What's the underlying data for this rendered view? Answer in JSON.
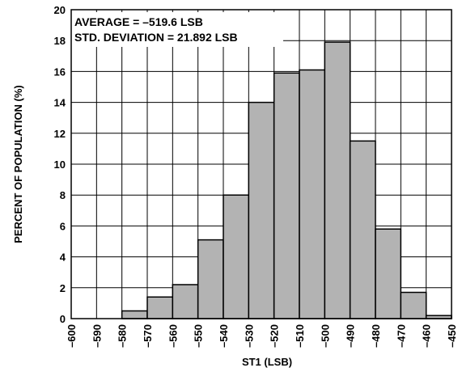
{
  "chart_data": {
    "type": "bar",
    "title": "",
    "xlabel": "ST1 (LSB)",
    "ylabel": "PERCENT OF POPULATION (%)",
    "annotations": [
      "AVERAGE = –519.6 LSB",
      "STD. DEVIATION = 21.892 LSB"
    ],
    "x_ticks": [
      "–600",
      "–590",
      "–580",
      "–570",
      "–560",
      "–550",
      "–540",
      "–530",
      "–520",
      "–510",
      "–500",
      "–490",
      "–480",
      "–470",
      "–460",
      "–450"
    ],
    "y_ticks": [
      "0",
      "2",
      "4",
      "6",
      "8",
      "10",
      "12",
      "14",
      "16",
      "18",
      "20"
    ],
    "xlim": [
      -600,
      -450
    ],
    "ylim": [
      0,
      20
    ],
    "grid": true,
    "bins": [
      {
        "start": -600,
        "end": -590,
        "value": 0
      },
      {
        "start": -590,
        "end": -580,
        "value": 0
      },
      {
        "start": -580,
        "end": -570,
        "value": 0.5
      },
      {
        "start": -570,
        "end": -560,
        "value": 1.4
      },
      {
        "start": -560,
        "end": -550,
        "value": 2.2
      },
      {
        "start": -550,
        "end": -540,
        "value": 5.1
      },
      {
        "start": -540,
        "end": -530,
        "value": 8.0
      },
      {
        "start": -530,
        "end": -520,
        "value": 14.0
      },
      {
        "start": -520,
        "end": -510,
        "value": 15.9
      },
      {
        "start": -510,
        "end": -500,
        "value": 16.1
      },
      {
        "start": -500,
        "end": -490,
        "value": 17.9
      },
      {
        "start": -490,
        "end": -480,
        "value": 11.5
      },
      {
        "start": -480,
        "end": -470,
        "value": 5.8
      },
      {
        "start": -470,
        "end": -460,
        "value": 1.7
      },
      {
        "start": -460,
        "end": -450,
        "value": 0.2
      }
    ]
  }
}
